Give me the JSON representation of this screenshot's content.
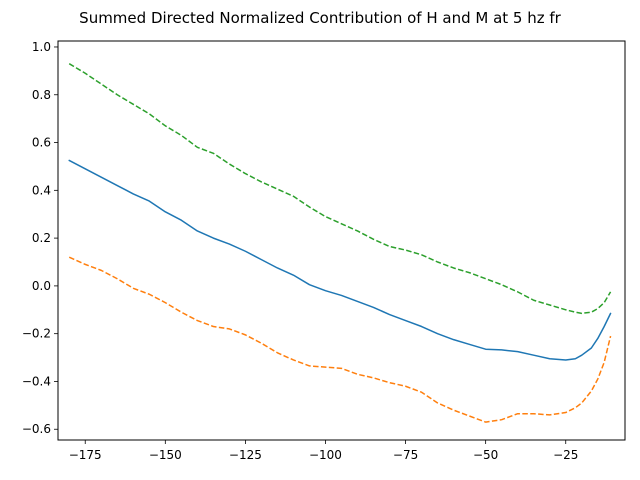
{
  "chart_data": {
    "type": "line",
    "title": "Summed Directed Normalized Contribution of H and M at 5 hz fr",
    "xlabel": "",
    "ylabel": "",
    "xlim": [
      -183.5,
      -6.5
    ],
    "ylim": [
      -0.645,
      1.025
    ],
    "xticks": [
      -175,
      -150,
      -125,
      -100,
      -75,
      -50,
      -25
    ],
    "xtick_labels": [
      "−175",
      "−150",
      "−125",
      "−100",
      "−75",
      "−50",
      "−25"
    ],
    "yticks": [
      -0.6,
      -0.4,
      -0.2,
      0.0,
      0.2,
      0.4,
      0.6,
      0.8,
      1.0
    ],
    "ytick_labels": [
      "−0.6",
      "−0.4",
      "−0.2",
      "0.0",
      "0.2",
      "0.4",
      "0.6",
      "0.8",
      "1.0"
    ],
    "grid": false,
    "legend": "none",
    "series": [
      {
        "color": "#1f77b4",
        "style": "solid",
        "x": [
          -180,
          -175,
          -170,
          -165,
          -160,
          -155,
          -150,
          -145,
          -140,
          -135,
          -130,
          -125,
          -120,
          -115,
          -110,
          -105,
          -100,
          -95,
          -90,
          -85,
          -80,
          -75,
          -70,
          -65,
          -60,
          -55,
          -50,
          -45,
          -40,
          -35,
          -30,
          -25,
          -22,
          -20,
          -17,
          -15,
          -13,
          -11
        ],
        "y": [
          0.525,
          0.49,
          0.455,
          0.42,
          0.385,
          0.355,
          0.31,
          0.275,
          0.23,
          0.2,
          0.175,
          0.145,
          0.11,
          0.075,
          0.045,
          0.005,
          -0.02,
          -0.04,
          -0.065,
          -0.09,
          -0.12,
          -0.145,
          -0.17,
          -0.2,
          -0.225,
          -0.245,
          -0.265,
          -0.268,
          -0.275,
          -0.29,
          -0.305,
          -0.31,
          -0.305,
          -0.29,
          -0.26,
          -0.22,
          -0.17,
          -0.115
        ]
      },
      {
        "color": "#ff7f0e",
        "style": "dashed",
        "x": [
          -180,
          -175,
          -170,
          -165,
          -160,
          -155,
          -150,
          -145,
          -140,
          -135,
          -130,
          -125,
          -120,
          -115,
          -110,
          -105,
          -100,
          -95,
          -90,
          -85,
          -80,
          -75,
          -70,
          -65,
          -60,
          -55,
          -50,
          -45,
          -40,
          -35,
          -30,
          -25,
          -22,
          -20,
          -17,
          -15,
          -13,
          -11
        ],
        "y": [
          0.12,
          0.09,
          0.065,
          0.03,
          -0.01,
          -0.035,
          -0.07,
          -0.11,
          -0.145,
          -0.17,
          -0.18,
          -0.205,
          -0.24,
          -0.28,
          -0.31,
          -0.335,
          -0.34,
          -0.345,
          -0.37,
          -0.385,
          -0.405,
          -0.42,
          -0.445,
          -0.49,
          -0.52,
          -0.545,
          -0.57,
          -0.56,
          -0.535,
          -0.535,
          -0.54,
          -0.53,
          -0.51,
          -0.49,
          -0.44,
          -0.39,
          -0.32,
          -0.21
        ]
      },
      {
        "color": "#2ca02c",
        "style": "dashed",
        "x": [
          -180,
          -175,
          -170,
          -165,
          -160,
          -155,
          -150,
          -145,
          -140,
          -135,
          -130,
          -125,
          -120,
          -115,
          -110,
          -105,
          -100,
          -95,
          -90,
          -85,
          -80,
          -75,
          -70,
          -65,
          -60,
          -55,
          -50,
          -45,
          -40,
          -35,
          -30,
          -25,
          -22,
          -20,
          -17,
          -15,
          -13,
          -11
        ],
        "y": [
          0.93,
          0.89,
          0.845,
          0.8,
          0.76,
          0.72,
          0.67,
          0.63,
          0.58,
          0.555,
          0.51,
          0.47,
          0.435,
          0.405,
          0.375,
          0.33,
          0.29,
          0.26,
          0.23,
          0.195,
          0.165,
          0.15,
          0.13,
          0.1,
          0.075,
          0.055,
          0.03,
          0.005,
          -0.025,
          -0.06,
          -0.08,
          -0.1,
          -0.11,
          -0.115,
          -0.11,
          -0.095,
          -0.07,
          -0.025
        ]
      }
    ]
  }
}
